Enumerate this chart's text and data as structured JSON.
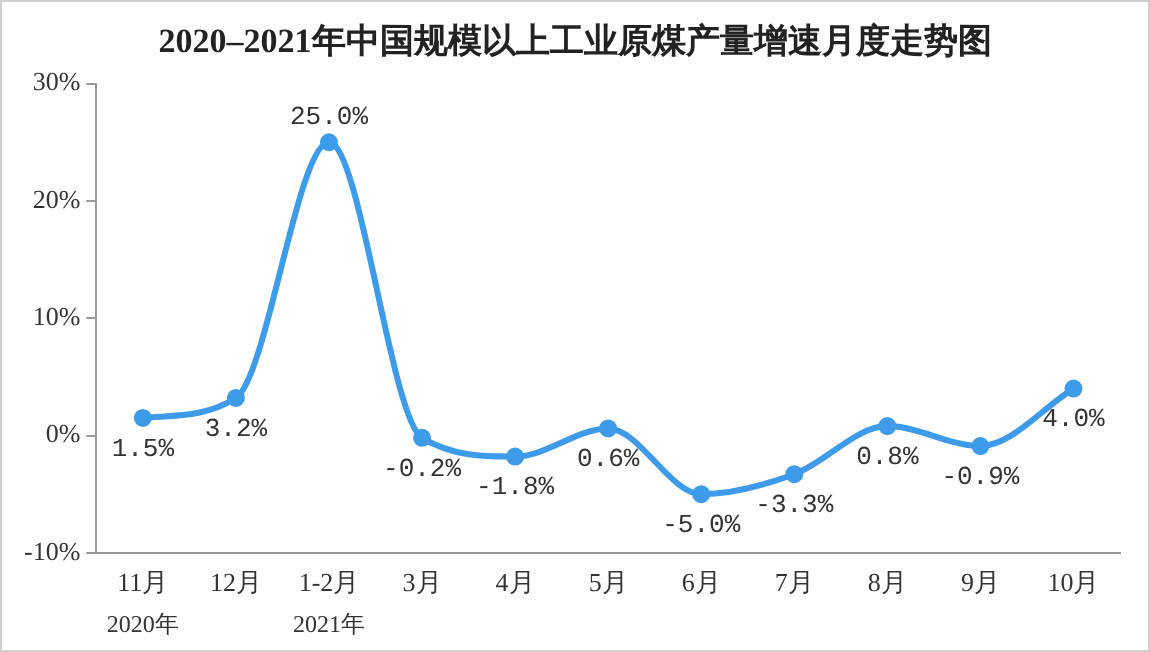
{
  "chart_data": {
    "type": "line",
    "title": "2020–2021年中国规模以上工业原煤产量增速月度走势图",
    "categories": [
      "11月",
      "12月",
      "1-2月",
      "3月",
      "4月",
      "5月",
      "6月",
      "7月",
      "8月",
      "9月",
      "10月"
    ],
    "values": [
      1.5,
      3.2,
      25.0,
      -0.2,
      -1.8,
      0.6,
      -5.0,
      -3.3,
      0.8,
      -0.9,
      4.0
    ],
    "value_labels": [
      "1.5%",
      "3.2%",
      "25.0%",
      "-0.2%",
      "-1.8%",
      "0.6%",
      "-5.0%",
      "-3.3%",
      "0.8%",
      "-0.9%",
      "4.0%"
    ],
    "color": "#3d9be9",
    "marker": "circle",
    "grid": false,
    "ylim": [
      -10,
      30
    ],
    "yticks": [
      {
        "value": -10,
        "label": "-10%"
      },
      {
        "value": 0,
        "label": "0%"
      },
      {
        "value": 10,
        "label": "10%"
      },
      {
        "value": 20,
        "label": "20%"
      },
      {
        "value": 30,
        "label": "30%"
      }
    ],
    "annotations": [
      "2020年",
      "2021年"
    ]
  }
}
